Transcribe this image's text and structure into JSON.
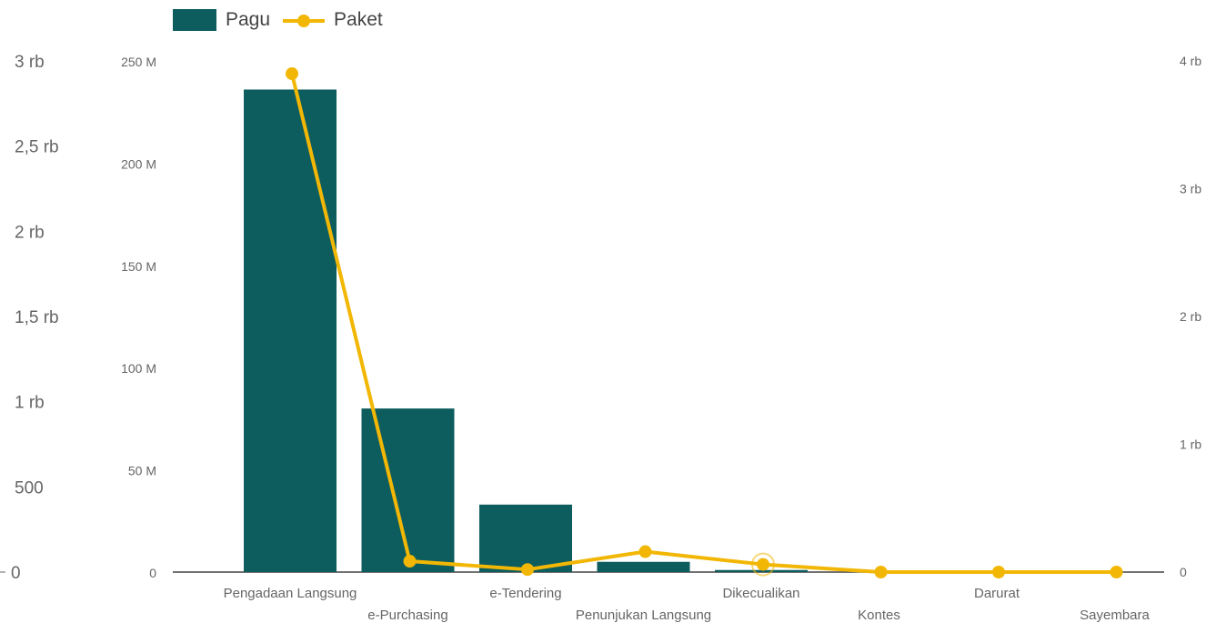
{
  "chart_data": {
    "type": "bar",
    "categories": [
      "Pengadaan Langsung",
      "e-Purchasing",
      "e-Tendering",
      "Penunjukan Langsung",
      "Dikecualikan",
      "Kontes",
      "Darurat",
      "Sayembara"
    ],
    "series": [
      {
        "name": "Pagu",
        "type": "bar",
        "axis": "middle",
        "color": "#0d5c5e",
        "values": [
          236000000,
          80000000,
          33000000,
          5000000,
          1000000,
          0,
          0,
          0
        ]
      },
      {
        "name": "Paket",
        "type": "line",
        "axis": "right",
        "color": "#f2b705",
        "values": [
          3900,
          85,
          20,
          160,
          60,
          0,
          0,
          0
        ]
      }
    ],
    "axes": {
      "left": {
        "ticks": [
          "0",
          "500",
          "1 rb",
          "1,5 rb",
          "2 rb",
          "2,5 rb",
          "3 rb"
        ],
        "range": [
          0,
          3000
        ]
      },
      "middle": {
        "ticks": [
          "0",
          "50 M",
          "100 M",
          "150 M",
          "200 M",
          "250 M"
        ],
        "range": [
          0,
          250000000
        ]
      },
      "right": {
        "ticks": [
          "0",
          "1 rb",
          "2 rb",
          "3 rb",
          "4 rb"
        ],
        "range": [
          0,
          4000
        ]
      }
    },
    "legend": {
      "placement": "top-left",
      "labels": [
        "Pagu",
        "Paket"
      ]
    },
    "grid": false
  }
}
